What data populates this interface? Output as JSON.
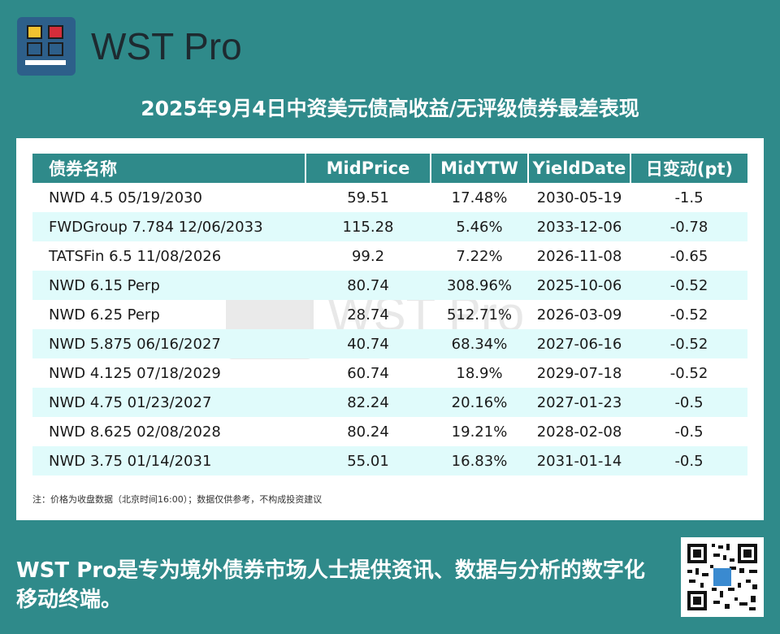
{
  "brand": {
    "name": "WST Pro"
  },
  "title": "2025年9月4日中资美元债高收益/无评级债券最差表现",
  "table": {
    "headers": [
      "债券名称",
      "MidPrice",
      "MidYTW",
      "YieldDate",
      "日变动(pt)"
    ],
    "rows": [
      [
        "NWD 4.5 05/19/2030",
        "59.51",
        "17.48%",
        "2030-05-19",
        "-1.5"
      ],
      [
        "FWDGroup 7.784 12/06/2033",
        "115.28",
        "5.46%",
        "2033-12-06",
        "-0.78"
      ],
      [
        "TATSFin 6.5 11/08/2026",
        "99.2",
        "7.22%",
        "2026-11-08",
        "-0.65"
      ],
      [
        "NWD 6.15 Perp",
        "80.74",
        "308.96%",
        "2025-10-06",
        "-0.52"
      ],
      [
        "NWD 6.25 Perp",
        "28.74",
        "512.71%",
        "2026-03-09",
        "-0.52"
      ],
      [
        "NWD 5.875 06/16/2027",
        "40.74",
        "68.34%",
        "2027-06-16",
        "-0.52"
      ],
      [
        "NWD 4.125 07/18/2029",
        "60.74",
        "18.9%",
        "2029-07-18",
        "-0.52"
      ],
      [
        "NWD 4.75 01/23/2027",
        "82.24",
        "20.16%",
        "2027-01-23",
        "-0.5"
      ],
      [
        "NWD 8.625 02/08/2028",
        "80.24",
        "19.21%",
        "2028-02-08",
        "-0.5"
      ],
      [
        "NWD 3.75 01/14/2031",
        "55.01",
        "16.83%",
        "2031-01-14",
        "-0.5"
      ]
    ]
  },
  "note": "注：价格为收盘数据（北京时间16:00）；数据仅供参考，不构成投资建议",
  "watermark": "WST Pro",
  "footer": "WST Pro是专为境外债券市场人士提供资讯、数据与分析的数字化移动终端。",
  "colors": {
    "background": "#2f8a8a",
    "header": "#2f8a8a",
    "stripe": "#e0fbfb"
  }
}
